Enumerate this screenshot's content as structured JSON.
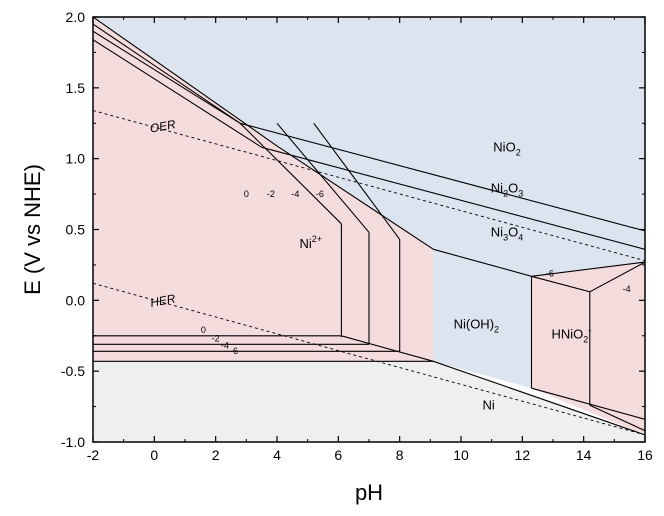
{
  "chart_data": {
    "type": "pourbaix-diagram",
    "xlabel": "pH",
    "ylabel": "E (V vs NHE)",
    "xlim": [
      -2,
      16
    ],
    "ylim": [
      -1.0,
      2.0
    ],
    "xticks": [
      "-2",
      "0",
      "2",
      "4",
      "6",
      "8",
      "10",
      "12",
      "14",
      "16"
    ],
    "yticks": [
      "-1.0",
      "-0.5",
      "0.0",
      "0.5",
      "1.0",
      "1.5",
      "2.0"
    ],
    "colors": {
      "pink": "#f5dcdc",
      "blue": "#dce5ef",
      "gray": "#efefef",
      "line": "#000000"
    },
    "regions": [
      {
        "name": "blue",
        "points": [
          [
            -2,
            2.0
          ],
          [
            16,
            2.0
          ],
          [
            16,
            0.27
          ],
          [
            12.3,
            0.17
          ],
          [
            9.1,
            0.36
          ],
          [
            4.0,
            1.09
          ],
          [
            -2,
            2.0
          ]
        ]
      },
      {
        "name": "blue",
        "points": [
          [
            9.1,
            0.36
          ],
          [
            12.3,
            0.17
          ],
          [
            12.3,
            -0.62
          ],
          [
            9.1,
            -0.43
          ]
        ]
      },
      {
        "name": "gray",
        "points": [
          [
            -2,
            -0.43
          ],
          [
            9.1,
            -0.43
          ],
          [
            16,
            -0.95
          ],
          [
            16,
            -1.0
          ],
          [
            -2,
            -1.0
          ]
        ]
      },
      {
        "name": "pink",
        "points": [
          [
            -2,
            2.0
          ],
          [
            4.0,
            1.09
          ],
          [
            9.1,
            0.36
          ],
          [
            9.1,
            -0.43
          ],
          [
            -2,
            -0.43
          ]
        ]
      },
      {
        "name": "pink",
        "points": [
          [
            12.3,
            0.17
          ],
          [
            16,
            0.27
          ],
          [
            16,
            -0.95
          ],
          [
            12.3,
            -0.62
          ]
        ]
      }
    ],
    "boundaries": [
      {
        "style": "solid",
        "points": [
          [
            -2,
            2.0
          ],
          [
            4.0,
            1.09
          ],
          [
            9.1,
            0.36
          ]
        ]
      },
      {
        "style": "solid",
        "points": [
          [
            9.1,
            0.36
          ],
          [
            12.3,
            0.17
          ],
          [
            16,
            0.27
          ]
        ]
      },
      {
        "style": "solid",
        "points": [
          [
            12.3,
            0.17
          ],
          [
            12.3,
            -0.62
          ]
        ]
      },
      {
        "style": "solid",
        "points": [
          [
            -2,
            -0.43
          ],
          [
            9.1,
            -0.43
          ],
          [
            16,
            -0.95
          ]
        ]
      },
      {
        "style": "solid",
        "points": [
          [
            -2,
            1.95
          ],
          [
            2.8,
            1.25
          ]
        ]
      },
      {
        "style": "solid",
        "points": [
          [
            -2,
            1.9
          ],
          [
            2.8,
            1.25
          ]
        ]
      },
      {
        "style": "solid",
        "points": [
          [
            -2,
            1.84
          ],
          [
            3.5,
            1.08
          ]
        ]
      },
      {
        "style": "solid",
        "points": [
          [
            2.8,
            1.25
          ],
          [
            16,
            0.49
          ]
        ]
      },
      {
        "style": "solid",
        "points": [
          [
            3.5,
            1.08
          ],
          [
            16,
            0.36
          ]
        ]
      },
      {
        "style": "solid",
        "points": [
          [
            2.8,
            1.25
          ],
          [
            6.1,
            0.54
          ]
        ]
      },
      {
        "style": "solid",
        "points": [
          [
            4.0,
            1.25
          ],
          [
            7.0,
            0.48
          ]
        ]
      },
      {
        "style": "solid",
        "points": [
          [
            5.2,
            1.25
          ],
          [
            8.0,
            0.43
          ]
        ]
      },
      {
        "style": "solid",
        "points": [
          [
            6.1,
            0.54
          ],
          [
            6.1,
            -0.26
          ]
        ]
      },
      {
        "style": "solid",
        "points": [
          [
            7.0,
            0.48
          ],
          [
            7.0,
            -0.31
          ]
        ]
      },
      {
        "style": "solid",
        "points": [
          [
            8.0,
            0.43
          ],
          [
            8.0,
            -0.36
          ]
        ]
      },
      {
        "style": "solid",
        "points": [
          [
            -2,
            -0.25
          ],
          [
            6.1,
            -0.25
          ]
        ]
      },
      {
        "style": "solid",
        "points": [
          [
            -2,
            -0.31
          ],
          [
            7.0,
            -0.31
          ]
        ]
      },
      {
        "style": "solid",
        "points": [
          [
            -2,
            -0.36
          ],
          [
            8.0,
            -0.36
          ]
        ]
      },
      {
        "style": "solid",
        "points": [
          [
            6.1,
            -0.25
          ],
          [
            9.1,
            -0.43
          ]
        ]
      },
      {
        "style": "solid",
        "points": [
          [
            12.3,
            0.17
          ],
          [
            14.2,
            0.06
          ],
          [
            16,
            0.27
          ]
        ]
      },
      {
        "style": "solid",
        "points": [
          [
            14.2,
            0.06
          ],
          [
            14.2,
            -0.74
          ]
        ]
      },
      {
        "style": "solid",
        "points": [
          [
            12.3,
            -0.62
          ],
          [
            16,
            -0.84
          ]
        ]
      },
      {
        "style": "solid",
        "points": [
          [
            14.2,
            -0.74
          ],
          [
            16,
            -0.92
          ]
        ]
      },
      {
        "style": "dashed",
        "points": [
          [
            -2,
            1.34
          ],
          [
            16,
            0.28
          ]
        ]
      },
      {
        "style": "dashed",
        "points": [
          [
            -2,
            0.12
          ],
          [
            16,
            -0.95
          ]
        ]
      }
    ],
    "labels": [
      {
        "text": "NiO",
        "sub": "2",
        "x": 11.5,
        "y": 1.05
      },
      {
        "text": "Ni",
        "sub": "2",
        "rest": "O",
        "sub2": "3",
        "x": 11.5,
        "y": 0.76
      },
      {
        "text": "Ni",
        "sub": "3",
        "rest": "O",
        "sub2": "4",
        "x": 11.5,
        "y": 0.45
      },
      {
        "text": "Ni",
        "sup": "2+",
        "x": 5.1,
        "y": 0.37
      },
      {
        "text": "Ni(OH)",
        "sub": "2",
        "x": 10.5,
        "y": -0.2
      },
      {
        "text": "HNiO",
        "sub": "2",
        "sup": "-",
        "x": 13.6,
        "y": -0.27
      },
      {
        "text": "Ni",
        "x": 10.9,
        "y": -0.77
      },
      {
        "text": "OER",
        "x": 0.3,
        "y": 1.2,
        "italic": true
      },
      {
        "text": "HER",
        "x": 0.3,
        "y": -0.03,
        "italic": true
      }
    ],
    "small_labels": [
      {
        "text": "0",
        "x": 3.0,
        "y": 0.73
      },
      {
        "text": "-2",
        "x": 3.8,
        "y": 0.73
      },
      {
        "text": "-4",
        "x": 4.6,
        "y": 0.73
      },
      {
        "text": "-6",
        "x": 5.4,
        "y": 0.73
      },
      {
        "text": "0",
        "x": 1.6,
        "y": -0.23
      },
      {
        "text": "-2",
        "x": 2.0,
        "y": -0.29
      },
      {
        "text": "-4",
        "x": 2.3,
        "y": -0.34
      },
      {
        "text": "-6",
        "x": 2.6,
        "y": -0.38
      },
      {
        "text": "-6",
        "x": 12.9,
        "y": 0.17
      },
      {
        "text": "-4",
        "x": 15.4,
        "y": 0.06
      }
    ]
  }
}
